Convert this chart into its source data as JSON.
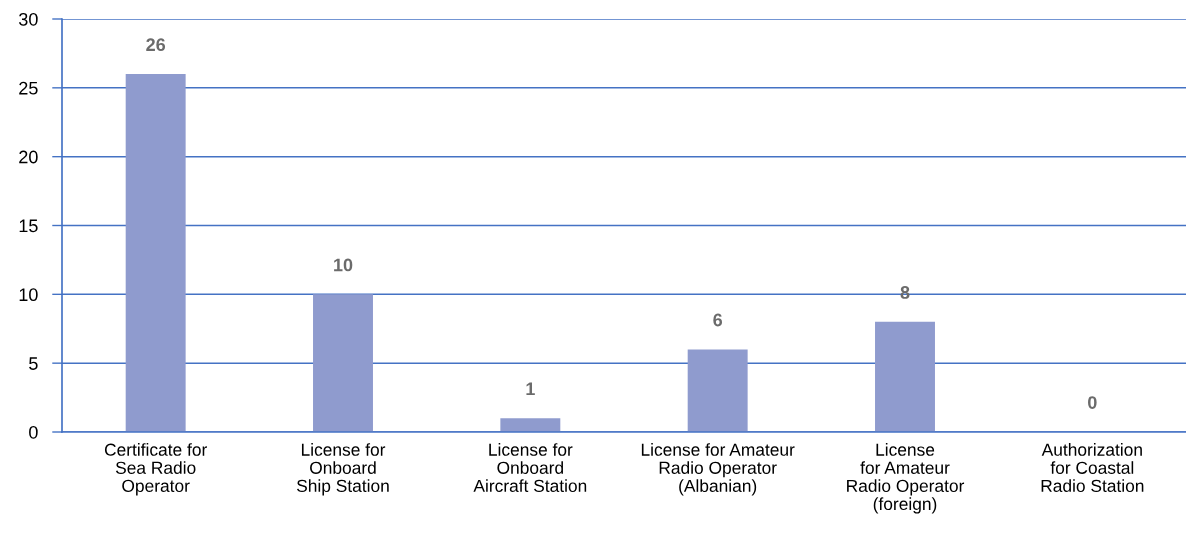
{
  "chart_data": {
    "type": "bar",
    "categories": [
      "Certificate for\nSea Radio\nOperator",
      "License for\nOnboard\nShip Station",
      "License for\nOnboard\nAircraft Station",
      "License for Amateur\nRadio Operator\n(Albanian)",
      "License\nfor Amateur\nRadio Operator\n(foreign)",
      "Authorization\nfor Coastal\nRadio Station"
    ],
    "values": [
      26,
      10,
      1,
      6,
      8,
      0
    ],
    "color": "#8f9bce",
    "ylim": [
      0,
      30
    ],
    "yticks": [
      0,
      5,
      10,
      15,
      20,
      25,
      30
    ],
    "grid": "y",
    "data_labels": true
  }
}
